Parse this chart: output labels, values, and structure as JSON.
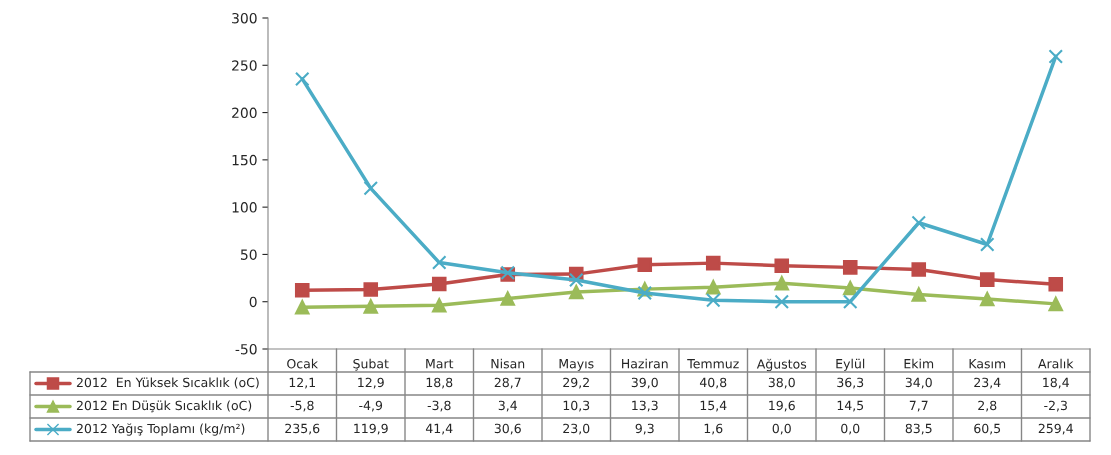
{
  "chart_data": {
    "type": "line",
    "categories": [
      "Ocak",
      "Şubat",
      "Mart",
      "Nisan",
      "Mayıs",
      "Haziran",
      "Temmuz",
      "Ağustos",
      "Eylül",
      "Ekim",
      "Kasım",
      "Aralık"
    ],
    "series": [
      {
        "name": "2012  En Yüksek Sıcaklık (oC)",
        "color": "#be4b48",
        "marker": "square",
        "values": [
          12.1,
          12.9,
          18.8,
          28.7,
          29.2,
          39.0,
          40.8,
          38.0,
          36.3,
          34.0,
          23.4,
          18.4
        ],
        "value_labels": [
          "12,1",
          "12,9",
          "18,8",
          "28,7",
          "29,2",
          "39,0",
          "40,8",
          "38,0",
          "36,3",
          "34,0",
          "23,4",
          "18,4"
        ]
      },
      {
        "name": "2012 En Düşük Sıcaklık (oC)",
        "color": "#9bbb59",
        "marker": "triangle",
        "values": [
          -5.8,
          -4.9,
          -3.8,
          3.4,
          10.3,
          13.3,
          15.4,
          19.6,
          14.5,
          7.7,
          2.8,
          -2.3
        ],
        "value_labels": [
          "-5,8",
          "-4,9",
          "-3,8",
          "3,4",
          "10,3",
          "13,3",
          "15,4",
          "19,6",
          "14,5",
          "7,7",
          "2,8",
          "-2,3"
        ]
      },
      {
        "name": "2012 Yağış Toplamı (kg/m²)",
        "color": "#4bacc6",
        "marker": "cross",
        "values": [
          235.6,
          119.9,
          41.4,
          30.6,
          23.0,
          9.3,
          1.6,
          0.0,
          0.0,
          83.5,
          60.5,
          259.4
        ],
        "value_labels": [
          "235,6",
          "119,9",
          "41,4",
          "30,6",
          "23,0",
          "9,3",
          "1,6",
          "0,0",
          "0,0",
          "83,5",
          "60,5",
          "259,4"
        ]
      }
    ],
    "ylim": [
      -50,
      300
    ],
    "yticks": [
      -50,
      0,
      50,
      100,
      150,
      200,
      250,
      300
    ],
    "grid": false,
    "legend": "bottom",
    "line_style": "solid"
  }
}
